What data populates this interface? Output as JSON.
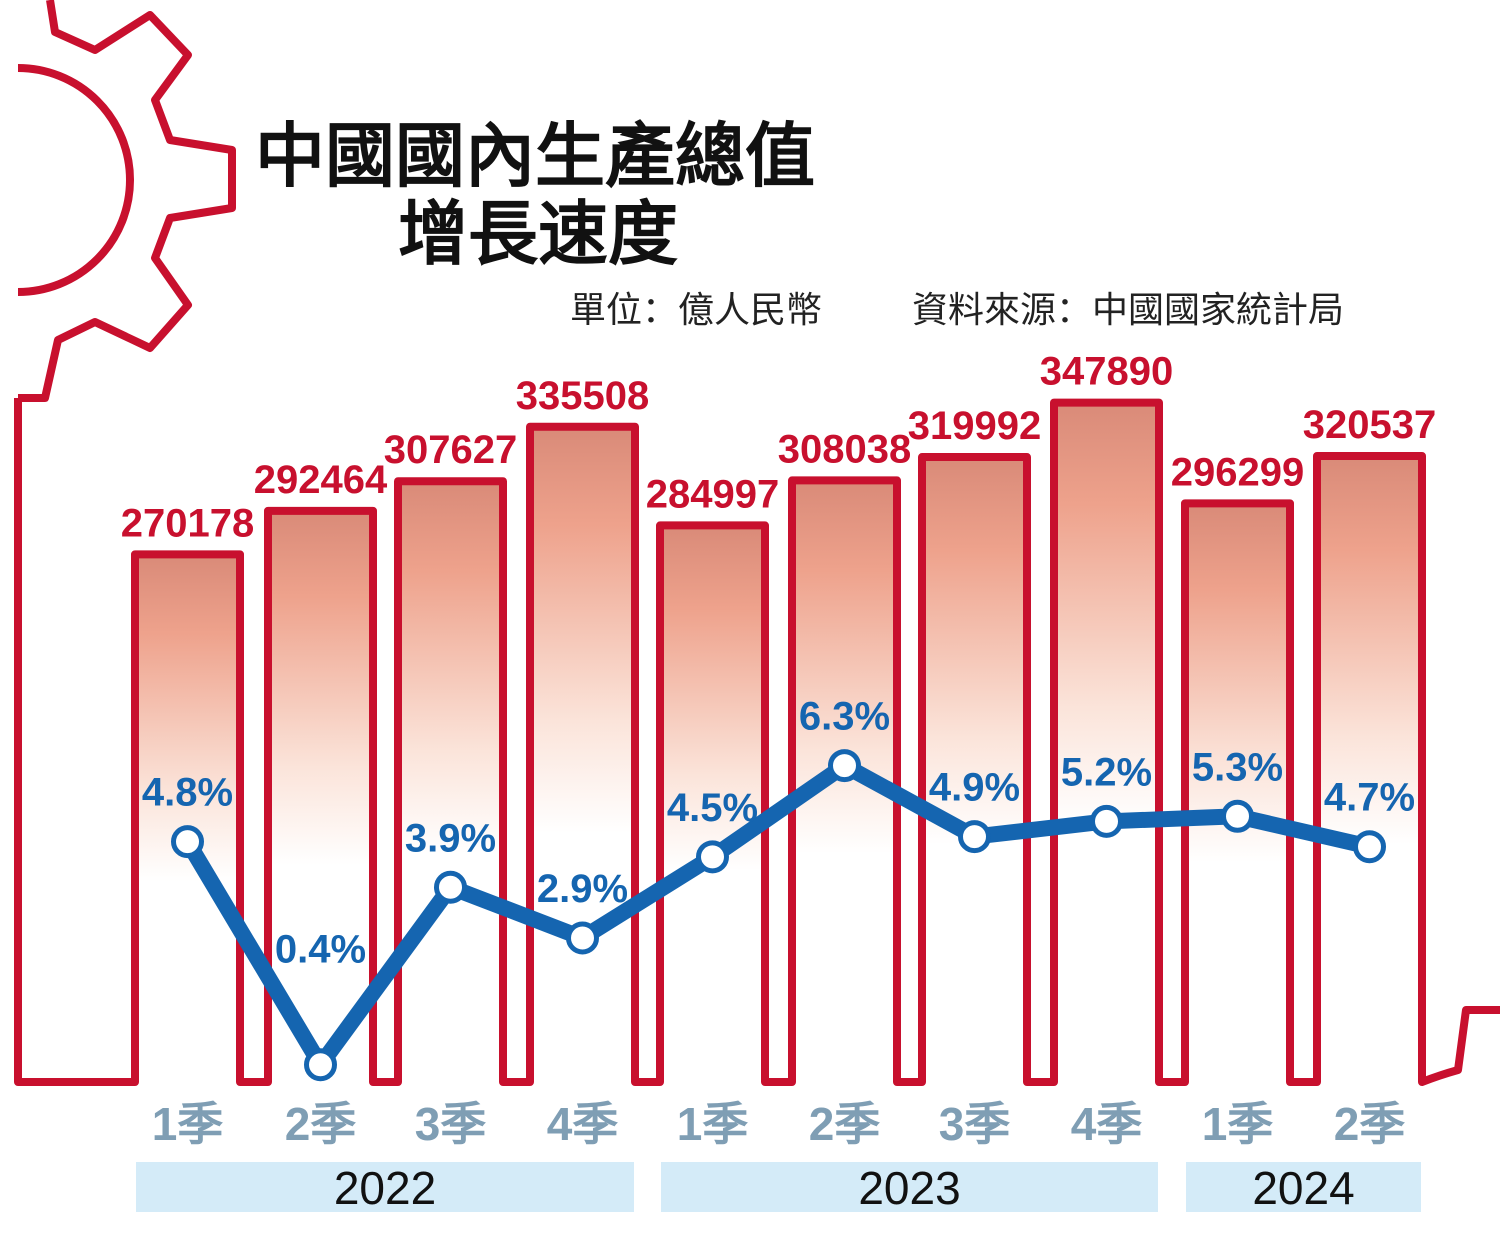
{
  "chart_data": {
    "type": "bar+line",
    "title": "中國國內生產總值",
    "title_line2": "增長速度",
    "unit": "單位：億人民幣",
    "source": "資料來源：中國國家統計局",
    "categories": [
      "1季",
      "2季",
      "3季",
      "4季",
      "1季",
      "2季",
      "3季",
      "4季",
      "1季",
      "2季"
    ],
    "years": [
      {
        "label": "2022",
        "span": 4
      },
      {
        "label": "2023",
        "span": 4
      },
      {
        "label": "2024",
        "span": 2
      }
    ],
    "series": [
      {
        "type": "bar",
        "values": [
          270178,
          292464,
          307627,
          335508,
          284997,
          308038,
          319992,
          347890,
          296299,
          320537
        ],
        "labels": [
          "270178",
          "292464",
          "307627",
          "335508",
          "284997",
          "308038",
          "319992",
          "347890",
          "296299",
          "320537"
        ]
      },
      {
        "type": "line",
        "values": [
          4.8,
          0.4,
          3.9,
          2.9,
          4.5,
          6.3,
          4.9,
          5.2,
          5.3,
          4.7
        ],
        "labels": [
          "4.8%",
          "0.4%",
          "3.9%",
          "2.9%",
          "4.5%",
          "6.3%",
          "4.9%",
          "5.2%",
          "5.3%",
          "4.7%"
        ]
      }
    ],
    "grid": false,
    "colors": {
      "bar_outline": "#c8102e",
      "bar_fill": "#e8907a",
      "line": "#1565b0",
      "quarter_label": "#7f9eb4",
      "year_band": "#d4ebf8"
    }
  }
}
